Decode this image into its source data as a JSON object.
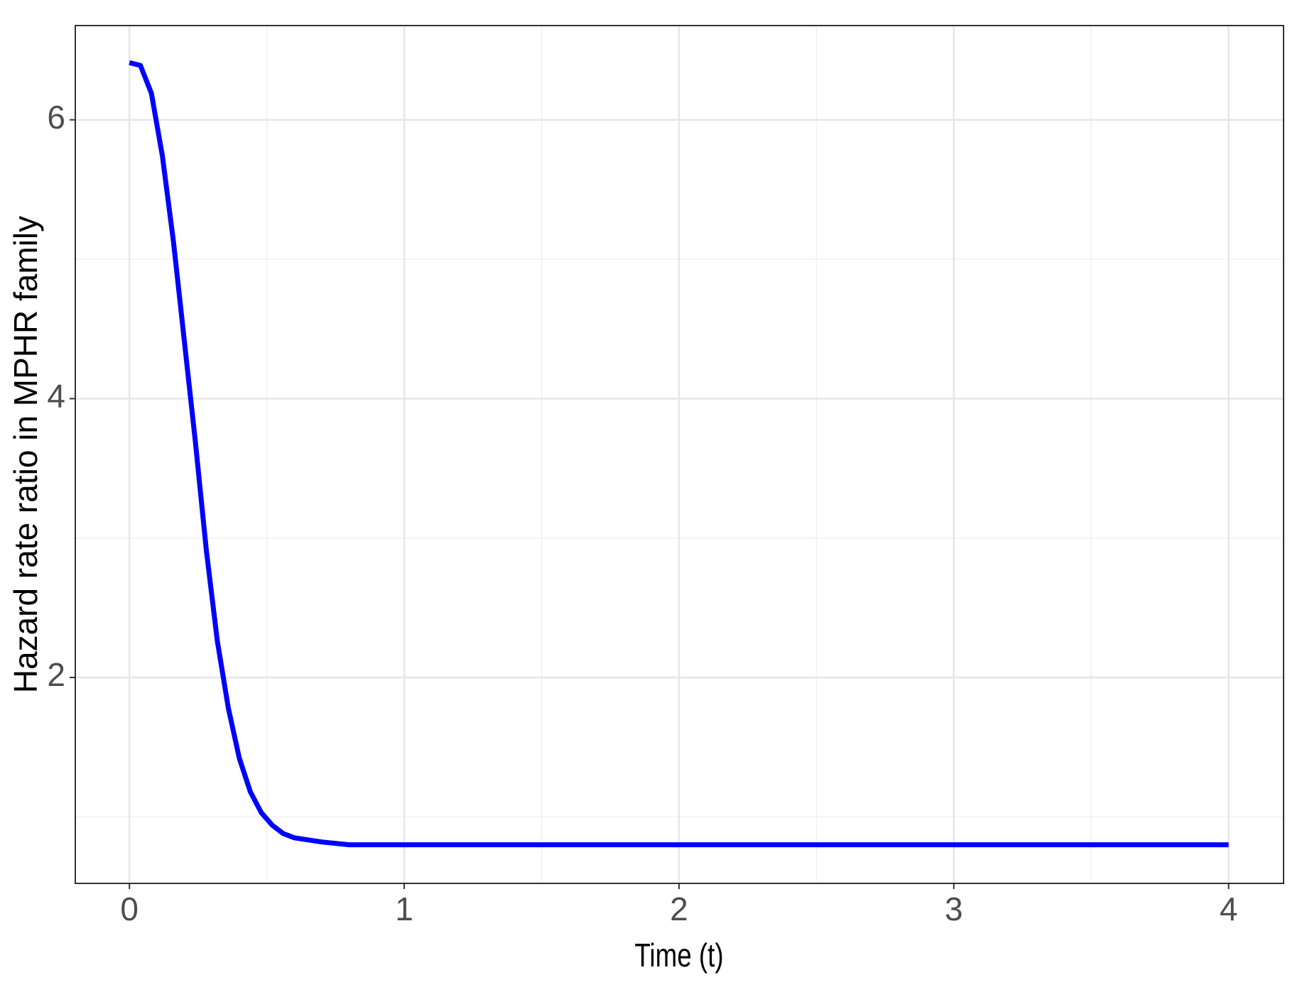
{
  "chart_data": {
    "type": "line",
    "x_label": "Time (t)",
    "y_label": "Hazard rate ratio in MPHR family",
    "xlim": [
      -0.197,
      4.2
    ],
    "ylim": [
      0.523,
      6.676
    ],
    "xticks": [
      0,
      1,
      2,
      3,
      4
    ],
    "yticks": [
      2,
      4,
      6
    ],
    "x_minor_ticks": [
      0.5,
      1.5,
      2.5,
      3.5
    ],
    "y_minor_ticks": [
      1,
      3,
      5
    ],
    "grid": true,
    "x": [
      0,
      0.04,
      0.08,
      0.12,
      0.16,
      0.2,
      0.24,
      0.28,
      0.32,
      0.36,
      0.4,
      0.44,
      0.48,
      0.52,
      0.56,
      0.6,
      0.7,
      0.8,
      1.0,
      2.0,
      3.0,
      4.0
    ],
    "series": [
      {
        "color": "#0000ff",
        "values": [
          6.41,
          6.39,
          6.19,
          5.74,
          5.13,
          4.41,
          3.69,
          2.91,
          2.26,
          1.78,
          1.42,
          1.18,
          1.03,
          0.94,
          0.88,
          0.85,
          0.82,
          0.8,
          0.8,
          0.8,
          0.8,
          0.8
        ]
      }
    ]
  }
}
